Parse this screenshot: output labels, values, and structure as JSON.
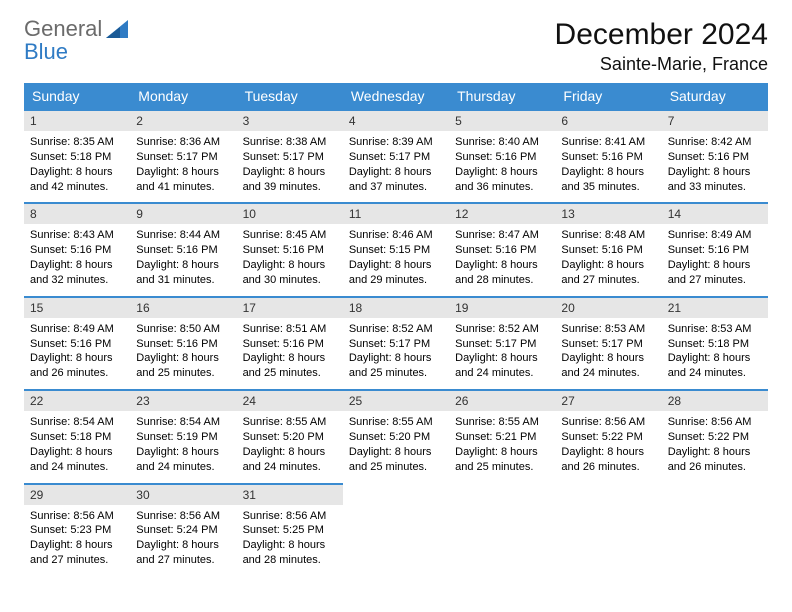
{
  "brand": {
    "part1": "General",
    "part2": "Blue"
  },
  "title": "December 2024",
  "location": "Sainte-Marie, France",
  "colors": {
    "header_bg": "#3a8bd0",
    "header_fg": "#ffffff",
    "daynum_bg": "#e6e6e6",
    "row_border": "#3a8bd0",
    "brand_gray": "#6b6b6b",
    "brand_blue": "#2f7bc4",
    "page_bg": "#ffffff",
    "text": "#000000"
  },
  "days_of_week": [
    "Sunday",
    "Monday",
    "Tuesday",
    "Wednesday",
    "Thursday",
    "Friday",
    "Saturday"
  ],
  "weeks": [
    [
      {
        "n": "1",
        "sr": "8:35 AM",
        "ss": "5:18 PM",
        "dl": "8 hours and 42 minutes."
      },
      {
        "n": "2",
        "sr": "8:36 AM",
        "ss": "5:17 PM",
        "dl": "8 hours and 41 minutes."
      },
      {
        "n": "3",
        "sr": "8:38 AM",
        "ss": "5:17 PM",
        "dl": "8 hours and 39 minutes."
      },
      {
        "n": "4",
        "sr": "8:39 AM",
        "ss": "5:17 PM",
        "dl": "8 hours and 37 minutes."
      },
      {
        "n": "5",
        "sr": "8:40 AM",
        "ss": "5:16 PM",
        "dl": "8 hours and 36 minutes."
      },
      {
        "n": "6",
        "sr": "8:41 AM",
        "ss": "5:16 PM",
        "dl": "8 hours and 35 minutes."
      },
      {
        "n": "7",
        "sr": "8:42 AM",
        "ss": "5:16 PM",
        "dl": "8 hours and 33 minutes."
      }
    ],
    [
      {
        "n": "8",
        "sr": "8:43 AM",
        "ss": "5:16 PM",
        "dl": "8 hours and 32 minutes."
      },
      {
        "n": "9",
        "sr": "8:44 AM",
        "ss": "5:16 PM",
        "dl": "8 hours and 31 minutes."
      },
      {
        "n": "10",
        "sr": "8:45 AM",
        "ss": "5:16 PM",
        "dl": "8 hours and 30 minutes."
      },
      {
        "n": "11",
        "sr": "8:46 AM",
        "ss": "5:15 PM",
        "dl": "8 hours and 29 minutes."
      },
      {
        "n": "12",
        "sr": "8:47 AM",
        "ss": "5:16 PM",
        "dl": "8 hours and 28 minutes."
      },
      {
        "n": "13",
        "sr": "8:48 AM",
        "ss": "5:16 PM",
        "dl": "8 hours and 27 minutes."
      },
      {
        "n": "14",
        "sr": "8:49 AM",
        "ss": "5:16 PM",
        "dl": "8 hours and 27 minutes."
      }
    ],
    [
      {
        "n": "15",
        "sr": "8:49 AM",
        "ss": "5:16 PM",
        "dl": "8 hours and 26 minutes."
      },
      {
        "n": "16",
        "sr": "8:50 AM",
        "ss": "5:16 PM",
        "dl": "8 hours and 25 minutes."
      },
      {
        "n": "17",
        "sr": "8:51 AM",
        "ss": "5:16 PM",
        "dl": "8 hours and 25 minutes."
      },
      {
        "n": "18",
        "sr": "8:52 AM",
        "ss": "5:17 PM",
        "dl": "8 hours and 25 minutes."
      },
      {
        "n": "19",
        "sr": "8:52 AM",
        "ss": "5:17 PM",
        "dl": "8 hours and 24 minutes."
      },
      {
        "n": "20",
        "sr": "8:53 AM",
        "ss": "5:17 PM",
        "dl": "8 hours and 24 minutes."
      },
      {
        "n": "21",
        "sr": "8:53 AM",
        "ss": "5:18 PM",
        "dl": "8 hours and 24 minutes."
      }
    ],
    [
      {
        "n": "22",
        "sr": "8:54 AM",
        "ss": "5:18 PM",
        "dl": "8 hours and 24 minutes."
      },
      {
        "n": "23",
        "sr": "8:54 AM",
        "ss": "5:19 PM",
        "dl": "8 hours and 24 minutes."
      },
      {
        "n": "24",
        "sr": "8:55 AM",
        "ss": "5:20 PM",
        "dl": "8 hours and 24 minutes."
      },
      {
        "n": "25",
        "sr": "8:55 AM",
        "ss": "5:20 PM",
        "dl": "8 hours and 25 minutes."
      },
      {
        "n": "26",
        "sr": "8:55 AM",
        "ss": "5:21 PM",
        "dl": "8 hours and 25 minutes."
      },
      {
        "n": "27",
        "sr": "8:56 AM",
        "ss": "5:22 PM",
        "dl": "8 hours and 26 minutes."
      },
      {
        "n": "28",
        "sr": "8:56 AM",
        "ss": "5:22 PM",
        "dl": "8 hours and 26 minutes."
      }
    ],
    [
      {
        "n": "29",
        "sr": "8:56 AM",
        "ss": "5:23 PM",
        "dl": "8 hours and 27 minutes."
      },
      {
        "n": "30",
        "sr": "8:56 AM",
        "ss": "5:24 PM",
        "dl": "8 hours and 27 minutes."
      },
      {
        "n": "31",
        "sr": "8:56 AM",
        "ss": "5:25 PM",
        "dl": "8 hours and 28 minutes."
      },
      null,
      null,
      null,
      null
    ]
  ],
  "labels": {
    "sunrise": "Sunrise:",
    "sunset": "Sunset:",
    "daylight": "Daylight:"
  }
}
